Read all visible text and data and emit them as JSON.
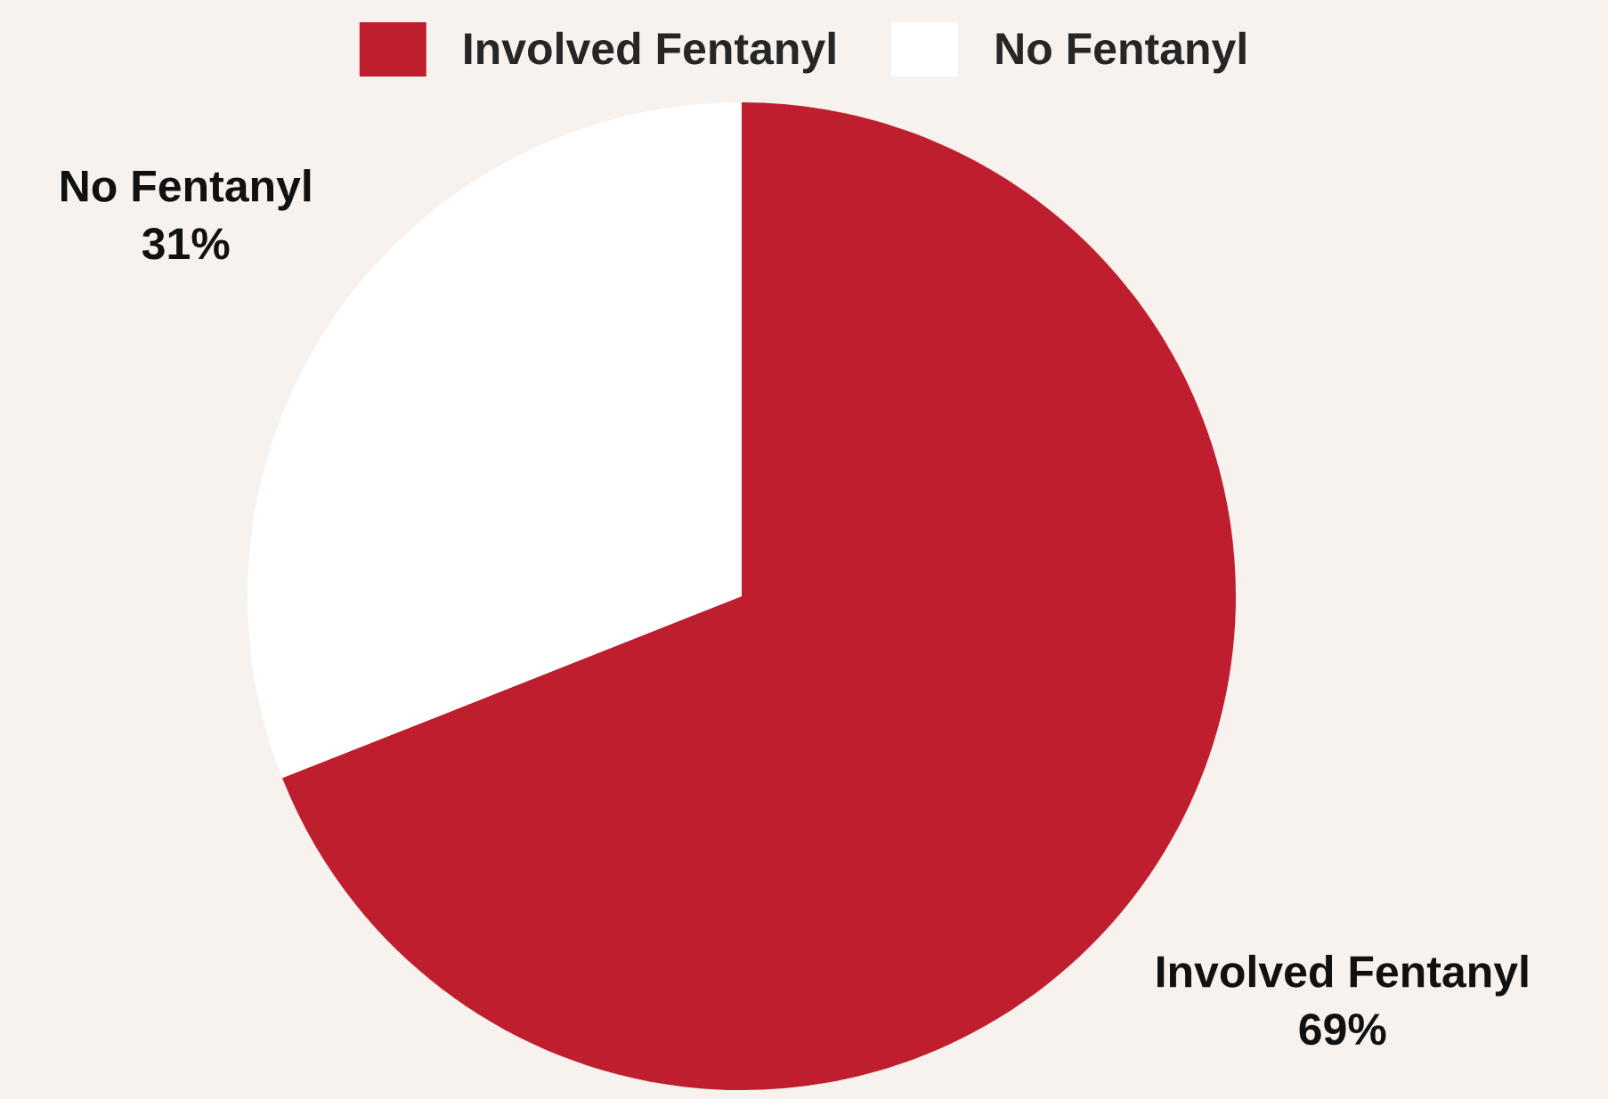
{
  "chart_data": {
    "type": "pie",
    "categories": [
      "Involved Fentanyl",
      "No Fentanyl"
    ],
    "values": [
      69,
      31
    ],
    "colors": [
      "#be1e2d",
      "#ffffff"
    ],
    "value_labels": [
      "69%",
      "31%"
    ],
    "legend": "top"
  }
}
